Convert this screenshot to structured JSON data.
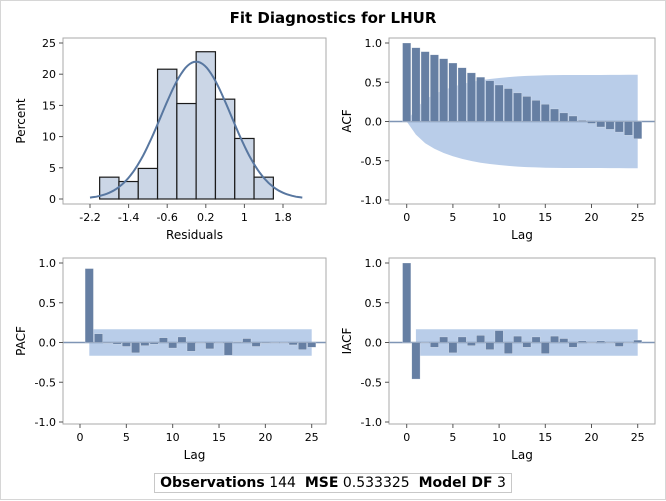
{
  "title": "Fit Diagnostics for LHUR",
  "footer": {
    "obs_label": "Observations",
    "obs_value": "144",
    "mse_label": "MSE",
    "mse_value": "0.533325",
    "df_label": "Model DF",
    "df_value": "3"
  },
  "colors": {
    "bar": "#667fa3",
    "band": "#b9cde9",
    "hist_fill": "#cbd6e6",
    "hist_edge": "#1a1a1a",
    "curve": "#5877a0",
    "axis": "#aaaaaa",
    "zero_line": "#7f95b5"
  },
  "chart_data": [
    {
      "type": "bar",
      "subtype": "histogram",
      "xlabel": "Residuals",
      "ylabel": "Percent",
      "xticks": [
        -2.2,
        -1.4,
        -0.6,
        0.2,
        1,
        1.8
      ],
      "xtick_labels": [
        "-2.2",
        "-1.4",
        "-0.6",
        "0.2",
        "1",
        "1.8"
      ],
      "yticks": [
        0,
        5,
        10,
        15,
        20,
        25
      ],
      "ytick_labels": [
        "0",
        "5",
        "10",
        "15",
        "20",
        "25"
      ],
      "xlim": [
        -2.6,
        2.85
      ],
      "ylim": [
        0,
        25
      ],
      "bin_edges": [
        -2.0,
        -1.6,
        -1.2,
        -0.8,
        -0.4,
        0.0,
        0.4,
        0.8,
        1.2,
        1.6
      ],
      "values": [
        3.5,
        2.8,
        4.9,
        20.8,
        15.3,
        23.6,
        16.0,
        9.7,
        3.5
      ],
      "normal_curve": {
        "mean": 0.0,
        "sd": 0.725,
        "range": [
          -2.2,
          2.2
        ]
      }
    },
    {
      "type": "bar",
      "subtype": "acf",
      "xlabel": "Lag",
      "ylabel": "ACF",
      "xticks": [
        0,
        5,
        10,
        15,
        20,
        25
      ],
      "xtick_labels": [
        "0",
        "5",
        "10",
        "15",
        "20",
        "25"
      ],
      "yticks": [
        -1,
        -0.5,
        0,
        0.5,
        1
      ],
      "ytick_labels": [
        "-1.0",
        "-0.5",
        "0.0",
        "0.5",
        "1.0"
      ],
      "xlim": [
        -1.5,
        27
      ],
      "ylim": [
        -1.02,
        1.02
      ],
      "lags": [
        0,
        1,
        2,
        3,
        4,
        5,
        6,
        7,
        8,
        9,
        10,
        11,
        12,
        13,
        14,
        15,
        16,
        17,
        18,
        19,
        20,
        21,
        22,
        23,
        24,
        25
      ],
      "values": [
        1.0,
        0.94,
        0.89,
        0.85,
        0.8,
        0.745,
        0.685,
        0.62,
        0.565,
        0.52,
        0.465,
        0.42,
        0.365,
        0.32,
        0.27,
        0.22,
        0.16,
        0.11,
        0.07,
        0.015,
        -0.025,
        -0.07,
        -0.1,
        -0.135,
        -0.175,
        -0.22
      ],
      "confidence_band": "2 standard errors (Bartlett), widening to about ±0.59 at lag 25",
      "n_obs": 144
    },
    {
      "type": "bar",
      "subtype": "pacf",
      "xlabel": "Lag",
      "ylabel": "PACF",
      "xticks": [
        0,
        5,
        10,
        15,
        20,
        25
      ],
      "xtick_labels": [
        "0",
        "5",
        "10",
        "15",
        "20",
        "25"
      ],
      "yticks": [
        -1,
        -0.5,
        0,
        0.5,
        1
      ],
      "ytick_labels": [
        "-1.0",
        "-0.5",
        "0.0",
        "0.5",
        "1.0"
      ],
      "xlim": [
        -1.5,
        27
      ],
      "ylim": [
        -1.02,
        1.02
      ],
      "lags": [
        1,
        2,
        3,
        4,
        5,
        6,
        7,
        8,
        9,
        10,
        11,
        12,
        13,
        14,
        15,
        16,
        17,
        18,
        19,
        20,
        21,
        22,
        23,
        24,
        25
      ],
      "values": [
        0.93,
        0.11,
        -0.01,
        -0.02,
        -0.05,
        -0.13,
        -0.04,
        -0.02,
        0.06,
        -0.07,
        0.07,
        -0.11,
        0.0,
        -0.08,
        0.0,
        -0.16,
        0.01,
        0.05,
        -0.05,
        -0.01,
        0.0,
        0.0,
        -0.03,
        -0.09,
        -0.06
      ],
      "band": 0.167
    },
    {
      "type": "bar",
      "subtype": "iacf",
      "xlabel": "Lag",
      "ylabel": "IACF",
      "xticks": [
        0,
        5,
        10,
        15,
        20,
        25
      ],
      "xtick_labels": [
        "0",
        "5",
        "10",
        "15",
        "20",
        "25"
      ],
      "yticks": [
        -1,
        -0.5,
        0,
        0.5,
        1
      ],
      "ytick_labels": [
        "-1.0",
        "-0.5",
        "0.0",
        "0.5",
        "1.0"
      ],
      "xlim": [
        -1.5,
        27
      ],
      "ylim": [
        -1.02,
        1.02
      ],
      "lags": [
        0,
        1,
        2,
        3,
        4,
        5,
        6,
        7,
        8,
        9,
        10,
        11,
        12,
        13,
        14,
        15,
        16,
        17,
        18,
        19,
        20,
        21,
        22,
        23,
        24,
        25
      ],
      "values": [
        1.0,
        -0.46,
        0.0,
        -0.06,
        0.07,
        -0.13,
        0.07,
        -0.04,
        0.09,
        -0.09,
        0.15,
        -0.14,
        0.08,
        -0.06,
        0.07,
        -0.14,
        0.08,
        0.05,
        -0.06,
        0.02,
        0.0,
        0.02,
        0.0,
        -0.05,
        0.0,
        0.03
      ],
      "band": 0.167
    }
  ]
}
